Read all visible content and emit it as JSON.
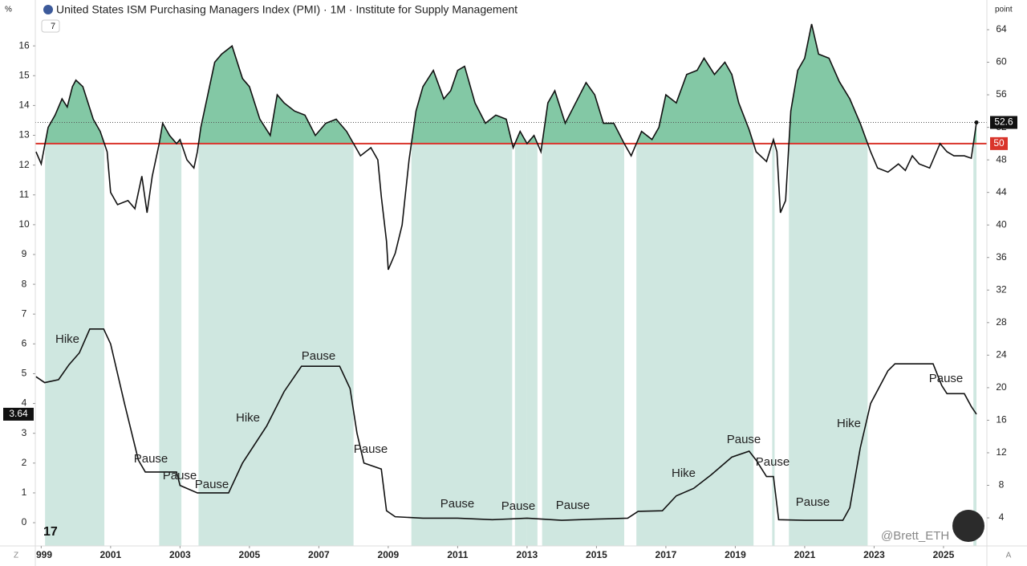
{
  "chart_data": {
    "type": "line",
    "title": "United States ISM Purchasing Managers Index (PMI) · 1M · Institute for Supply Management",
    "indicator_badge": "7",
    "y_axis_label": "%",
    "y2_axis_label": "point",
    "corner_left": "Z",
    "corner_right": "A",
    "watermark": "@Brett_ETH",
    "reference_line": {
      "value": 50,
      "color": "#d9342b"
    },
    "area_color": "#83c8a5",
    "band_color": "#cfe7e0",
    "xlim": [
      1998.83,
      2026.25
    ],
    "xticks": [
      {
        "value": 1999,
        "label": "999"
      },
      2001,
      2003,
      2005,
      2007,
      2009,
      2011,
      2013,
      2015,
      2017,
      2019,
      2021,
      2023,
      2025
    ],
    "ylim": [
      -0.78,
      17.54
    ],
    "yticks": [
      0,
      1,
      2,
      3,
      4,
      5,
      6,
      7,
      8,
      9,
      10,
      11,
      12,
      13,
      14,
      15,
      16
    ],
    "y2lim": [
      0.55,
      67.65
    ],
    "y2ticks": [
      4,
      8,
      12,
      16,
      20,
      24,
      28,
      32,
      36,
      40,
      44,
      48,
      52,
      56,
      60,
      64
    ],
    "series": [
      {
        "axis": "y2",
        "color": "#111111",
        "x": [
          1998.85,
          1999.0,
          1999.2,
          1999.4,
          1999.6,
          1999.75,
          1999.9,
          2000.0,
          2000.2,
          2000.5,
          2000.7,
          2000.9,
          2001.0,
          2001.2,
          2001.5,
          2001.7,
          2001.9,
          2002.05,
          2002.2,
          2002.4,
          2002.5,
          2002.7,
          2002.9,
          2003.0,
          2003.2,
          2003.4,
          2003.5,
          2003.6,
          2003.8,
          2004.0,
          2004.2,
          2004.5,
          2004.8,
          2005.0,
          2005.3,
          2005.6,
          2005.8,
          2006.0,
          2006.3,
          2006.6,
          2006.9,
          2007.2,
          2007.5,
          2007.8,
          2008.0,
          2008.2,
          2008.5,
          2008.7,
          2008.8,
          2008.95,
          2009.0,
          2009.2,
          2009.4,
          2009.6,
          2009.8,
          2010.0,
          2010.3,
          2010.6,
          2010.8,
          2011.0,
          2011.2,
          2011.5,
          2011.8,
          2012.1,
          2012.4,
          2012.6,
          2012.8,
          2013.0,
          2013.2,
          2013.4,
          2013.6,
          2013.8,
          2014.1,
          2014.4,
          2014.7,
          2014.95,
          2015.2,
          2015.5,
          2015.8,
          2016.0,
          2016.3,
          2016.6,
          2016.8,
          2017.0,
          2017.3,
          2017.6,
          2017.9,
          2018.1,
          2018.4,
          2018.7,
          2018.9,
          2019.1,
          2019.4,
          2019.6,
          2019.9,
          2020.1,
          2020.2,
          2020.3,
          2020.45,
          2020.6,
          2020.8,
          2021.0,
          2021.2,
          2021.4,
          2021.7,
          2022.0,
          2022.3,
          2022.6,
          2022.9,
          2023.1,
          2023.4,
          2023.7,
          2023.9,
          2024.1,
          2024.3,
          2024.6,
          2024.9,
          2025.1,
          2025.3,
          2025.6,
          2025.8,
          2025.95
        ],
        "values": [
          49,
          47.5,
          52,
          53.5,
          55.5,
          54.5,
          57,
          57.8,
          57,
          53,
          51.5,
          49,
          44,
          42.5,
          43,
          42,
          46,
          41.5,
          46,
          50,
          52.5,
          51,
          50,
          50.5,
          48,
          47,
          49,
          52,
          56,
          60,
          61,
          62,
          58,
          57,
          53,
          51,
          56,
          55,
          54,
          53.5,
          51,
          52.5,
          53,
          51.5,
          50,
          48.5,
          49.5,
          48,
          43.5,
          38,
          34.5,
          36.5,
          40,
          48,
          54,
          57,
          59,
          55.5,
          56.5,
          59,
          59.5,
          55,
          52.5,
          53.5,
          53,
          49.5,
          51.5,
          50,
          51,
          49,
          55,
          56.5,
          52.5,
          55,
          57.5,
          56,
          52.5,
          52.5,
          50,
          48.5,
          51.5,
          50.5,
          52,
          56,
          55,
          58.5,
          59,
          60.5,
          58.5,
          60,
          58.5,
          55,
          51.7,
          49,
          47.8,
          50.5,
          49,
          41.5,
          43,
          54,
          59,
          60.5,
          64.7,
          61,
          60.5,
          57.6,
          55.5,
          52.5,
          49,
          47,
          46.5,
          47.5,
          46.7,
          48.5,
          47.5,
          47,
          50,
          49,
          48.5,
          48.5,
          48.2,
          52.6
        ]
      },
      {
        "axis": "y",
        "color": "#111111",
        "x": [
          1998.85,
          1999.1,
          1999.5,
          1999.8,
          2000.1,
          2000.4,
          2000.8,
          2001.0,
          2001.4,
          2001.8,
          2002.0,
          2002.9,
          2003.0,
          2003.5,
          2004.4,
          2004.8,
          2005.5,
          2006.0,
          2006.5,
          2007.6,
          2007.9,
          2008.1,
          2008.3,
          2008.8,
          2008.95,
          2009.2,
          2010.0,
          2011.0,
          2012.0,
          2013.0,
          2014.0,
          2015.0,
          2015.9,
          2016.2,
          2016.9,
          2017.3,
          2017.8,
          2018.3,
          2018.9,
          2019.4,
          2019.6,
          2019.9,
          2020.1,
          2020.25,
          2021.0,
          2022.1,
          2022.3,
          2022.6,
          2022.9,
          2023.4,
          2023.6,
          2024.7,
          2024.95,
          2025.1,
          2025.6,
          2025.8,
          2025.95
        ],
        "values": [
          4.9,
          4.7,
          4.8,
          5.3,
          5.7,
          6.5,
          6.5,
          6.0,
          4.0,
          2.1,
          1.7,
          1.7,
          1.25,
          1.0,
          1.0,
          2.0,
          3.25,
          4.4,
          5.25,
          5.25,
          4.5,
          3.0,
          2.0,
          1.8,
          0.4,
          0.2,
          0.15,
          0.15,
          0.1,
          0.15,
          0.08,
          0.12,
          0.15,
          0.38,
          0.4,
          0.9,
          1.15,
          1.6,
          2.2,
          2.4,
          2.1,
          1.55,
          1.55,
          0.1,
          0.08,
          0.08,
          0.5,
          2.5,
          4.0,
          5.1,
          5.33,
          5.33,
          4.6,
          4.33,
          4.33,
          3.9,
          3.64
        ]
      }
    ],
    "annotations": [
      "Hike",
      "Pause",
      "Hike",
      "Pause",
      "Pause",
      "Pause",
      "Pause",
      "Pause",
      "Pause",
      "Pause",
      "Hike",
      "Pause",
      "Pause",
      "Pause",
      "Hike",
      "Pause"
    ]
  }
}
